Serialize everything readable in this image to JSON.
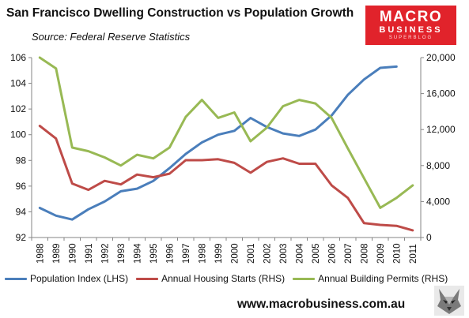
{
  "header": {
    "title": "San Francisco Dwelling Construction vs Population Growth",
    "source": "Source: Federal Reserve Statistics"
  },
  "logo": {
    "line1": "MACRO",
    "line2": "BUSINESS",
    "line3": "SUPERBLOG"
  },
  "footer": {
    "website": "www.macrobusiness.com.au"
  },
  "chart_data": {
    "type": "line",
    "categories": [
      "1988",
      "1989",
      "1990",
      "1991",
      "1992",
      "1993",
      "1994",
      "1995",
      "1996",
      "1997",
      "1998",
      "1999",
      "2000",
      "2001",
      "2002",
      "2003",
      "2004",
      "2005",
      "2006",
      "2007",
      "2008",
      "2009",
      "2010",
      "2011"
    ],
    "y_left": {
      "ylim": [
        92,
        106
      ],
      "ticks": [
        92,
        94,
        96,
        98,
        100,
        102,
        104,
        106
      ]
    },
    "y_right": {
      "ylim": [
        0,
        20000
      ],
      "ticks": [
        0,
        4000,
        8000,
        12000,
        16000,
        20000
      ],
      "tick_labels": [
        "0",
        "4,000",
        "8,000",
        "12,000",
        "16,000",
        "20,000"
      ]
    },
    "grid": false,
    "legend_position": "bottom",
    "series": [
      {
        "name": "Population Index (LHS)",
        "axis": "left",
        "color": "#4a7ebb",
        "values": [
          94.3,
          93.7,
          93.4,
          94.2,
          94.8,
          95.6,
          95.8,
          96.4,
          97.4,
          98.5,
          99.4,
          100.0,
          100.3,
          101.3,
          100.6,
          100.1,
          99.9,
          100.4,
          101.5,
          103.1,
          104.3,
          105.2,
          105.3,
          null
        ]
      },
      {
        "name": "Annual Housing Starts (RHS)",
        "axis": "right",
        "color": "#be4b48",
        "values": [
          12400,
          11000,
          6000,
          5300,
          6300,
          5900,
          7000,
          6700,
          7100,
          8600,
          8600,
          8700,
          8300,
          7200,
          8400,
          8800,
          8200,
          8200,
          5800,
          4400,
          1600,
          1400,
          1300,
          800
        ]
      },
      {
        "name": "Annual Building Permits (RHS)",
        "axis": "right",
        "color": "#98b954",
        "values": [
          20000,
          18800,
          10000,
          9600,
          8900,
          8000,
          9200,
          8800,
          10000,
          13400,
          15300,
          13300,
          13900,
          10700,
          12200,
          14600,
          15300,
          14900,
          13300,
          9900,
          6600,
          3300,
          4400,
          5800
        ]
      }
    ]
  }
}
